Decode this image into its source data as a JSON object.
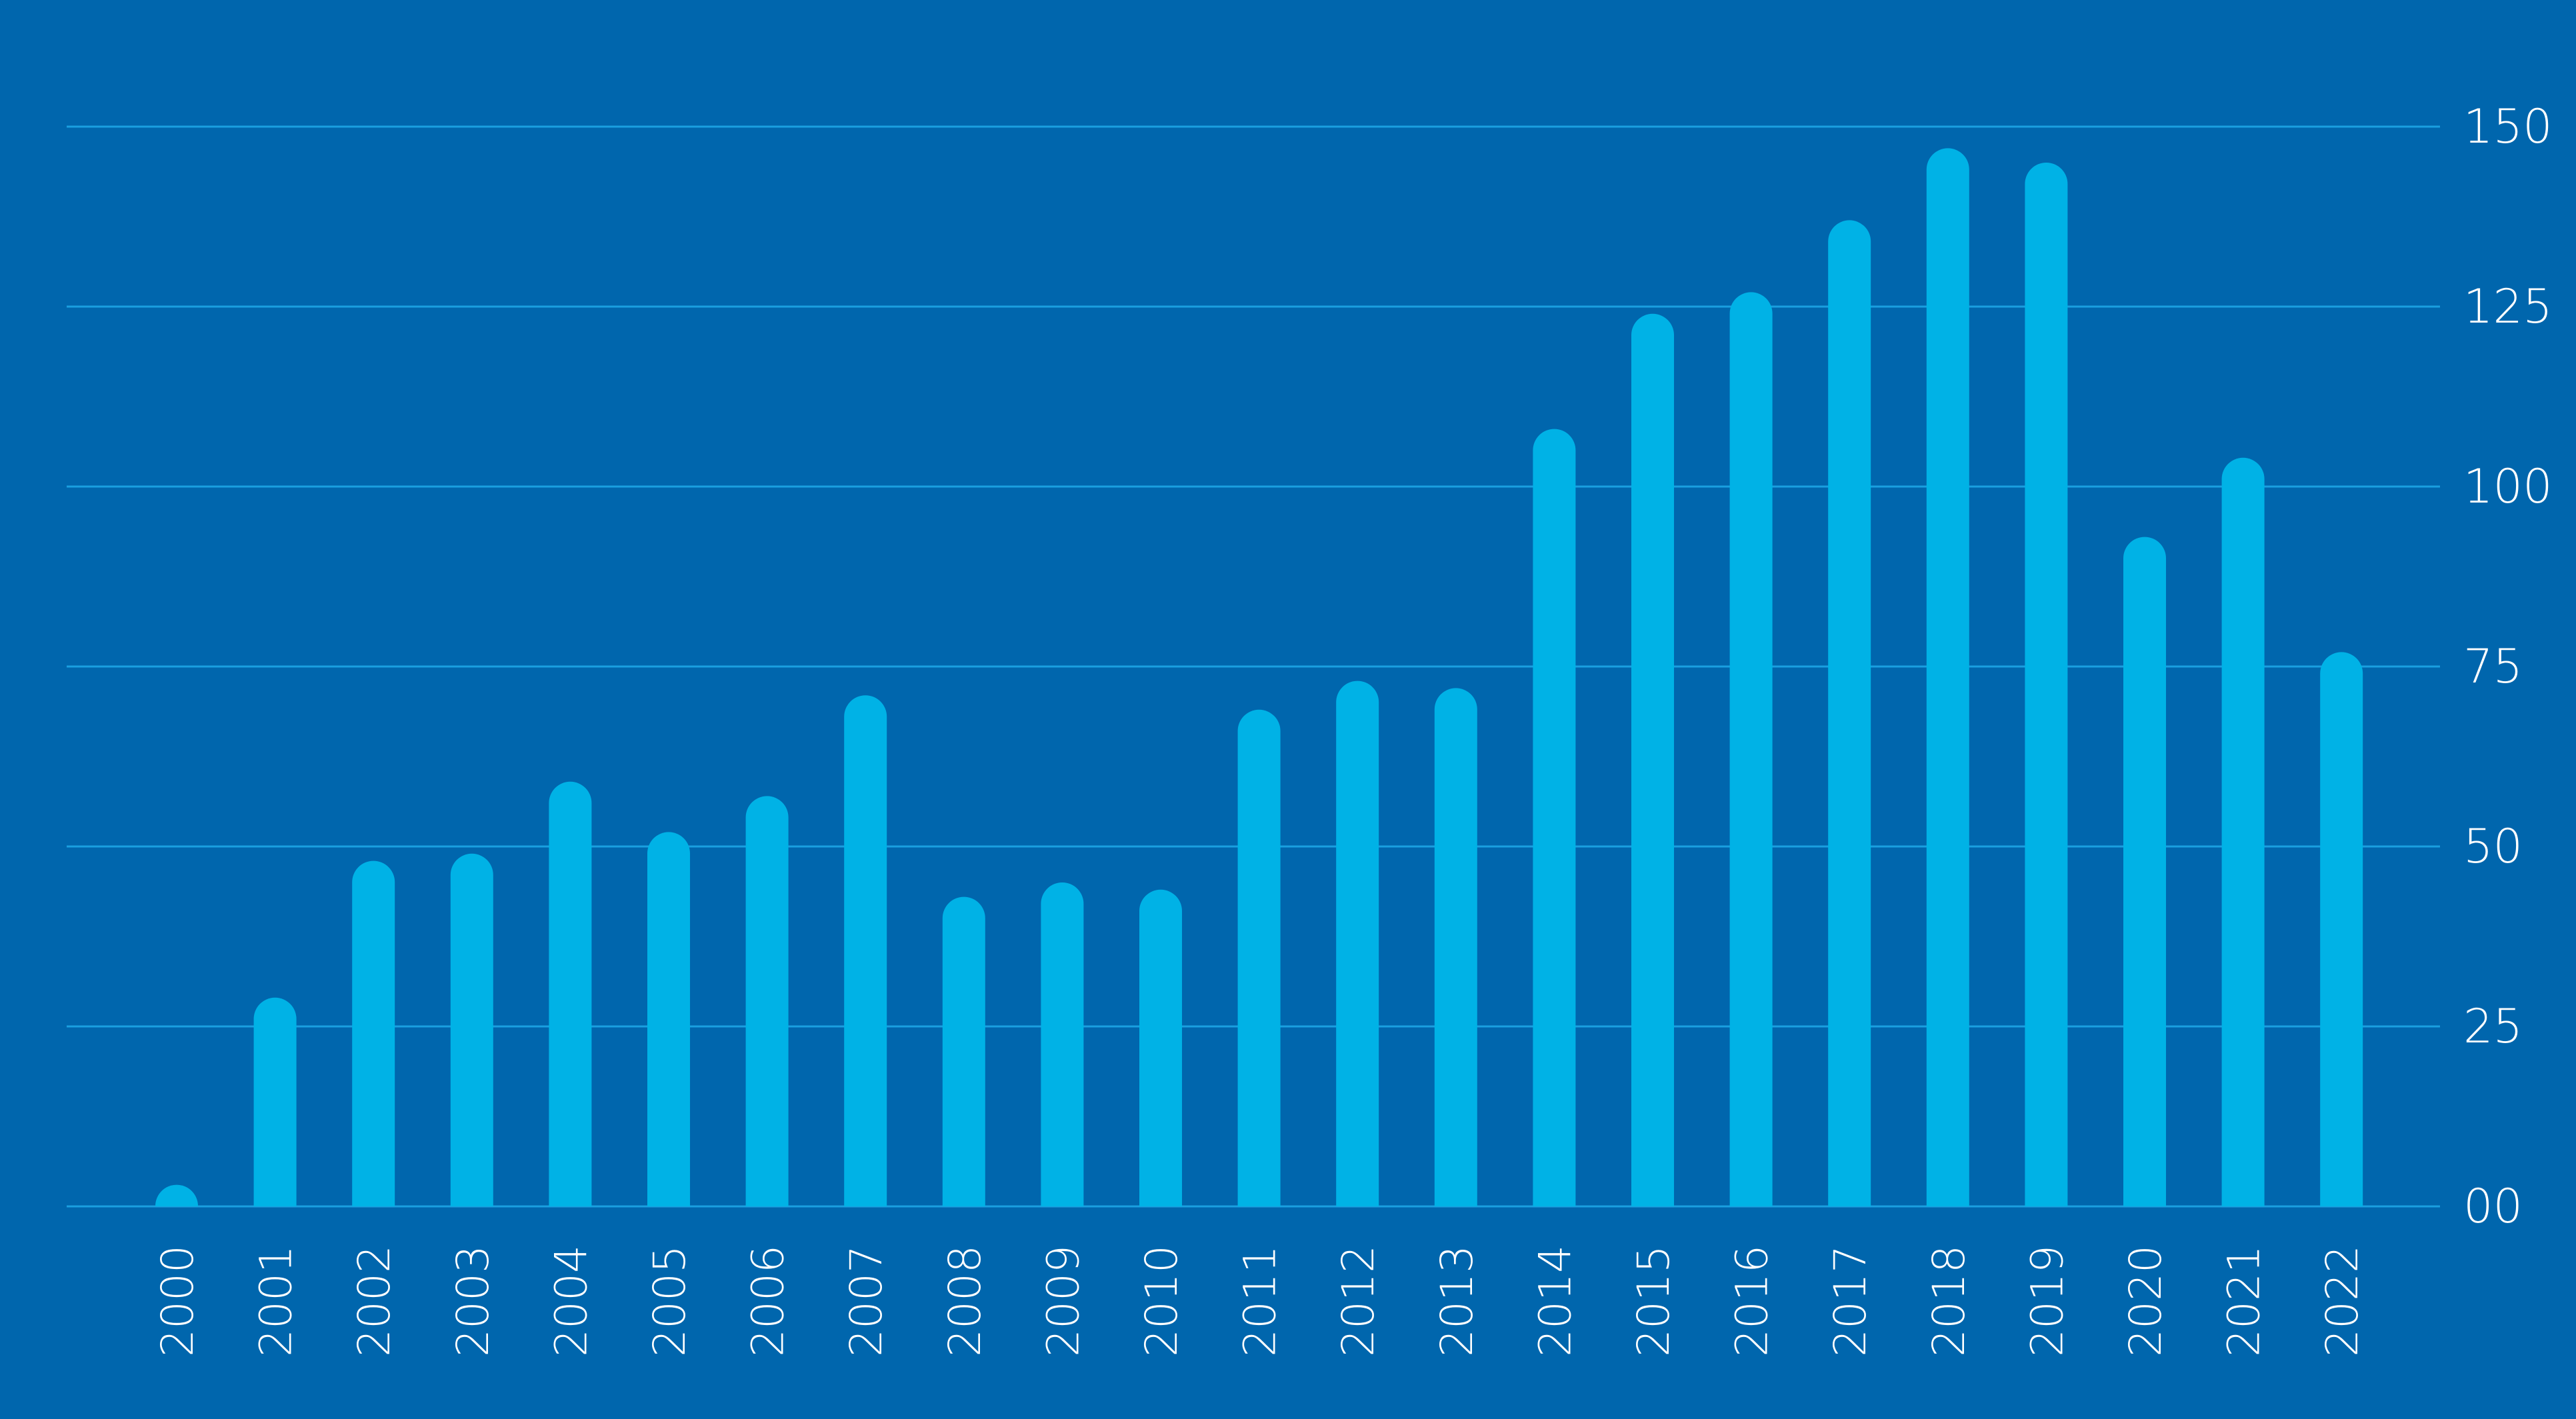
{
  "colors": {
    "background": "#0066ad",
    "bar": "#00b2e6",
    "gridline": "#1a9fe0",
    "text": "#ffffff"
  },
  "chart_data": {
    "type": "bar",
    "title": "",
    "xlabel": "",
    "ylabel": "",
    "categories": [
      "2000",
      "2001",
      "2002",
      "2003",
      "2004",
      "2005",
      "2006",
      "2007",
      "2008",
      "2009",
      "2010",
      "2011",
      "2012",
      "2013",
      "2014",
      "2015",
      "2016",
      "2017",
      "2018",
      "2019",
      "2020",
      "2021",
      "2022"
    ],
    "values": [
      3,
      29,
      48,
      49,
      59,
      52,
      57,
      71,
      43,
      45,
      44,
      69,
      73,
      72,
      108,
      124,
      127,
      137,
      147,
      145,
      93,
      104,
      77
    ],
    "ylim": [
      0,
      150
    ],
    "yticks": [
      0,
      25,
      50,
      75,
      100,
      125,
      150
    ],
    "ytick_labels": [
      "00",
      "25",
      "50",
      "75",
      "100",
      "125",
      "150"
    ],
    "y_axis_side": "right",
    "grid": true,
    "legend": "none",
    "bar_style": "rounded-top"
  }
}
